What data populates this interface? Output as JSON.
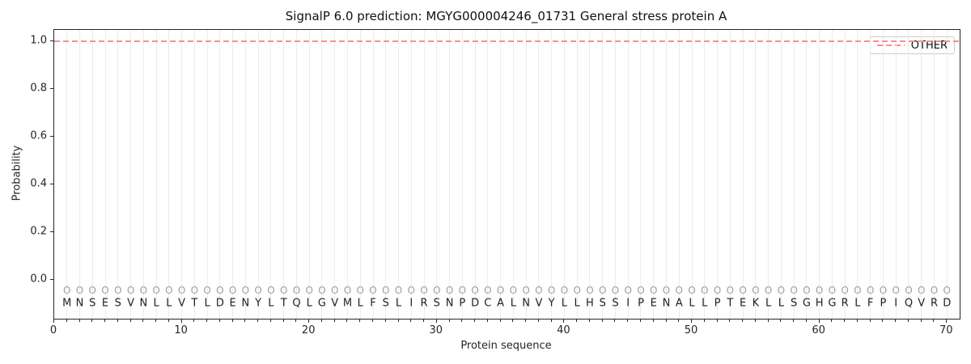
{
  "figure": {
    "title": "SignalP 6.0 prediction: MGYG000004246_01731 General stress protein A"
  },
  "chart_data": {
    "type": "line",
    "title": "SignalP 6.0 prediction: MGYG000004246_01731 General stress protein A",
    "xlabel": "Protein sequence",
    "ylabel": "Probability",
    "xlim": [
      0,
      71
    ],
    "ylim": [
      -0.163,
      1.0475
    ],
    "x_major_ticks": [
      0,
      10,
      20,
      30,
      40,
      50,
      60,
      70
    ],
    "x_minor_tick_step": 1,
    "y_ticks": [
      0.0,
      0.2,
      0.4,
      0.6,
      0.8,
      1.0
    ],
    "grid": "light vertical gridline at every residue position 1-70",
    "legend": {
      "position": "upper right",
      "entries": [
        {
          "label": "OTHER",
          "color": "#f19292",
          "linestyle": "dashed"
        }
      ]
    },
    "series": [
      {
        "name": "OTHER",
        "linestyle": "dashed",
        "color": "#f19292",
        "x": [
          0,
          71
        ],
        "y": [
          1.0,
          1.0
        ]
      }
    ],
    "sequence": "MNSESVNLLVTLDENYLTQLGVMLFSLIRSNPDCALNVYLLHSSIPENALLPTEKLLSGHGRLFPIQVRD",
    "predicted_labels": "OOOOOOOOOOOOOOOOOOOOOOOOOOOOOOOOOOOOOOOOOOOOOOOOOOOOOOOOOOOOOOOOOOOOOO"
  },
  "legend": {
    "label": "OTHER"
  },
  "colors": {
    "other_line": "#f19292",
    "grid": "#ececec",
    "spine": "#262626",
    "residue_letter": "#1f1f1f",
    "predicted_label": "#9e9e9e",
    "legend_border": "#cccccc"
  }
}
